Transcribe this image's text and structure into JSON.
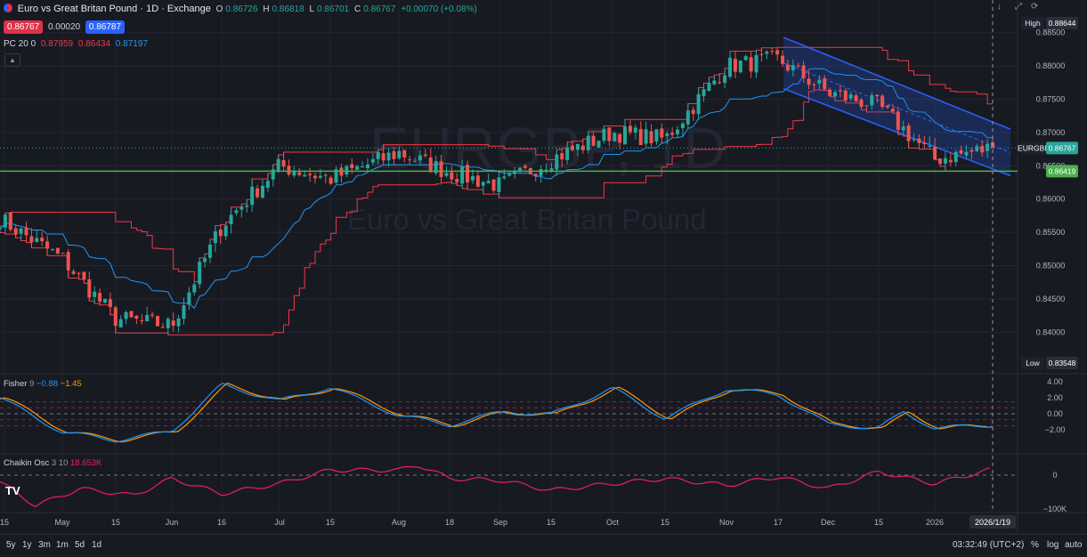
{
  "header": {
    "symbol_title": "Euro vs Great Britan Pound · 1D · Exchange",
    "o_label": "O",
    "o_value": "0.86726",
    "h_label": "H",
    "h_value": "0.86818",
    "l_label": "L",
    "l_value": "0.86701",
    "c_label": "C",
    "c_value": "0.86767",
    "change": "+0.00070 (+0.08%)",
    "sell_price": "0.86767",
    "spread": "0.00020",
    "buy_price": "0.86787",
    "pc_label": "PC 20 0",
    "pc_upper": "0.87959",
    "pc_lower": "0.86434",
    "pc_basis": "0.87197"
  },
  "watermark": {
    "line1": "EURGBP, 1D",
    "line2": "Euro vs Great Britan Pound"
  },
  "price_axis": {
    "ticks": [
      "0.88500",
      "0.88000",
      "0.87500",
      "0.87000",
      "0.86500",
      "0.86000",
      "0.85500",
      "0.85000",
      "0.84500",
      "0.84000"
    ],
    "high_label": "High",
    "high_value": "0.88644",
    "low_label": "Low",
    "low_value": "0.83548",
    "symbol_tag": "EURGBP",
    "symbol_value": "0.86767",
    "hline_value": "0.86419"
  },
  "fisher": {
    "label": "Fisher",
    "param": "9",
    "v1": "−0.88",
    "v2": "−1.45",
    "ticks": [
      "4.00",
      "2.00",
      "0.00",
      "−2.00"
    ]
  },
  "chaikin": {
    "label": "Chaikin Osc",
    "param": "3 10",
    "value": "18.653K",
    "ticks": [
      "0",
      "−100K"
    ]
  },
  "time_axis": {
    "labels": [
      "15",
      "May",
      "15",
      "Jun",
      "16",
      "Jul",
      "15",
      "Aug",
      "18",
      "Sep",
      "15",
      "Oct",
      "15",
      "Nov",
      "17",
      "Dec",
      "15",
      "2026"
    ],
    "crosshair_label": "2026/1/19"
  },
  "toolbar": {
    "timeframes": [
      "5y",
      "1y",
      "3m",
      "1m",
      "5d",
      "1d"
    ],
    "time": "03:32:49 (UTC+2)",
    "percent": "%",
    "log": "log",
    "auto": "auto"
  },
  "colors": {
    "up": "#26a69a",
    "down": "#ef5350",
    "channel_band": "#f23645",
    "basis": "#2196f3",
    "hline": "#4caf50",
    "fisher": "#2196f3",
    "trigger": "#ff9800",
    "chaikin": "#e91e63",
    "regression": "#2962ff"
  },
  "chart_data": {
    "type": "candlestick",
    "symbol": "EURGBP",
    "interval": "1D",
    "x_range": [
      "2025-04-15",
      "2026-01-19"
    ],
    "y_range": [
      0.8355,
      0.8864
    ],
    "series": [
      {
        "name": "close_approx",
        "x": [
          "Apr 15",
          "May",
          "May 15",
          "Jun",
          "Jun 16",
          "Jul",
          "Jul 15",
          "Aug",
          "Aug 18",
          "Sep",
          "Sep 15",
          "Oct",
          "Oct 15",
          "Nov",
          "Nov 17",
          "Dec",
          "Dec 15",
          "2026",
          "Jan 19"
        ],
        "values": [
          0.857,
          0.851,
          0.842,
          0.841,
          0.856,
          0.865,
          0.863,
          0.867,
          0.864,
          0.862,
          0.866,
          0.87,
          0.869,
          0.88,
          0.881,
          0.876,
          0.874,
          0.866,
          0.8677
        ]
      }
    ],
    "last": {
      "open": 0.86726,
      "high": 0.86818,
      "low": 0.86701,
      "close": 0.86767,
      "change": 0.0007,
      "change_pct": 0.08
    },
    "horizontal_line": 0.86419,
    "price_channel": {
      "length": 20,
      "upper": 0.87959,
      "lower": 0.86434,
      "basis": 0.87197
    },
    "period_high": 0.88644,
    "period_low": 0.83548,
    "fisher": {
      "length": 9,
      "fisher": -0.88,
      "trigger": -1.45,
      "levels": [
        1.5,
        0.75,
        -0.75,
        -1.5
      ]
    },
    "chaikin_osc": {
      "fast": 3,
      "slow": 10,
      "value": 18653
    }
  }
}
